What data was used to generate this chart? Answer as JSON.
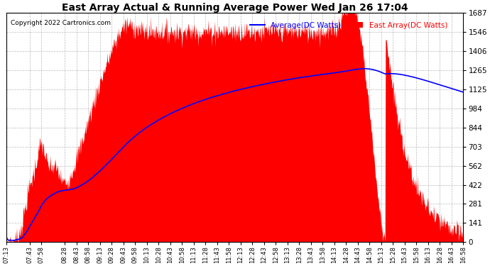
{
  "title": "East Array Actual & Running Average Power Wed Jan 26 17:04",
  "copyright": "Copyright 2022 Cartronics.com",
  "legend_average": "Average(DC Watts)",
  "legend_east": "East Array(DC Watts)",
  "ymin": 0.0,
  "ymax": 1687.0,
  "yticks": [
    0.0,
    140.6,
    281.2,
    421.7,
    562.3,
    702.9,
    843.5,
    984.1,
    1124.7,
    1265.2,
    1405.8,
    1546.4,
    1687.0
  ],
  "background_color": "#ffffff",
  "grid_color": "#aaaaaa",
  "fill_color": "#ff0000",
  "avg_line_color": "#0000ff",
  "title_color": "#000000",
  "copyright_color": "#000000",
  "legend_avg_color": "#0000ff",
  "legend_east_color": "#ff0000",
  "x_labels": [
    "07:13",
    "07:43",
    "07:58",
    "08:28",
    "08:43",
    "08:58",
    "09:13",
    "09:28",
    "09:43",
    "09:58",
    "10:13",
    "10:28",
    "10:43",
    "10:58",
    "11:13",
    "11:28",
    "11:43",
    "11:58",
    "12:13",
    "12:28",
    "12:43",
    "12:58",
    "13:13",
    "13:28",
    "13:43",
    "13:58",
    "14:13",
    "14:28",
    "14:43",
    "14:58",
    "15:13",
    "15:28",
    "15:43",
    "15:58",
    "16:13",
    "16:28",
    "16:43",
    "16:58"
  ]
}
